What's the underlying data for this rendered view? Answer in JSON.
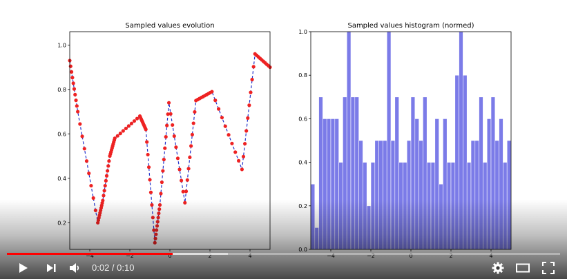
{
  "player": {
    "current_time": "0:02",
    "duration": "0:10",
    "time_separator": " / ",
    "played_fraction": 0.3,
    "accent_color": "#ff0000"
  },
  "controls": {
    "icons": [
      "play-icon",
      "next-icon",
      "volume-icon",
      "settings-icon",
      "theater-mode-icon",
      "fullscreen-icon"
    ]
  },
  "chart_data": [
    {
      "type": "line",
      "title": "Sampled values evolution",
      "xlim": [
        -5,
        5
      ],
      "ylim": [
        0.08,
        1.06
      ],
      "xticks": [
        -4,
        -2,
        0,
        2,
        4
      ],
      "yticks": [
        0.2,
        0.4,
        0.6,
        0.8,
        1.0
      ],
      "xtick_labels": [
        "−4",
        "−2",
        "0",
        "2",
        "4"
      ],
      "ytick_labels": [
        "0.2",
        "0.4",
        "0.6",
        "0.8",
        "1.0"
      ],
      "series": [
        {
          "style": "dashed-line-with-dots",
          "line_color": "#2233cc",
          "marker_color": "#ee2222",
          "x": [
            -5.0,
            -4.6,
            -3.6,
            -3.35,
            -3.0,
            -2.75,
            -1.5,
            -1.2,
            -0.75,
            -0.5,
            -0.05,
            0.75,
            1.3,
            2.1,
            3.6,
            4.25,
            5.0
          ],
          "y": [
            0.93,
            0.7,
            0.2,
            0.3,
            0.5,
            0.58,
            0.68,
            0.62,
            0.11,
            0.28,
            0.74,
            0.29,
            0.75,
            0.79,
            0.44,
            0.96,
            0.9
          ]
        }
      ]
    },
    {
      "type": "bar",
      "title": "Sampled values histogram (normed)",
      "xlim": [
        -5,
        5
      ],
      "ylim": [
        0,
        1.0
      ],
      "xticks": [
        -4,
        -2,
        0,
        2,
        4
      ],
      "yticks": [
        0.0,
        0.2,
        0.4,
        0.6,
        0.8,
        1.0
      ],
      "xtick_labels": [
        "−4",
        "−2",
        "0",
        "2",
        "4"
      ],
      "ytick_labels": [
        "0.0",
        "0.2",
        "0.4",
        "0.6",
        "0.8",
        "1.0"
      ],
      "bar_color": "#7b7be8",
      "bin_start": -5,
      "bin_width": 0.2,
      "values": [
        0.3,
        0.1,
        0.7,
        0.6,
        0.6,
        0.6,
        0.6,
        0.4,
        0.7,
        1.0,
        0.7,
        0.7,
        0.5,
        0.4,
        0.2,
        0.4,
        0.5,
        0.5,
        0.5,
        1.0,
        0.5,
        0.7,
        0.4,
        0.4,
        0.5,
        0.7,
        0.6,
        0.5,
        0.7,
        0.4,
        0.4,
        0.6,
        0.3,
        0.6,
        0.4,
        0.4,
        0.8,
        1.0,
        0.8,
        0.4,
        0.5,
        0.5,
        0.7,
        0.4,
        0.6,
        0.7,
        0.5,
        0.6,
        0.4,
        0.5
      ]
    }
  ]
}
